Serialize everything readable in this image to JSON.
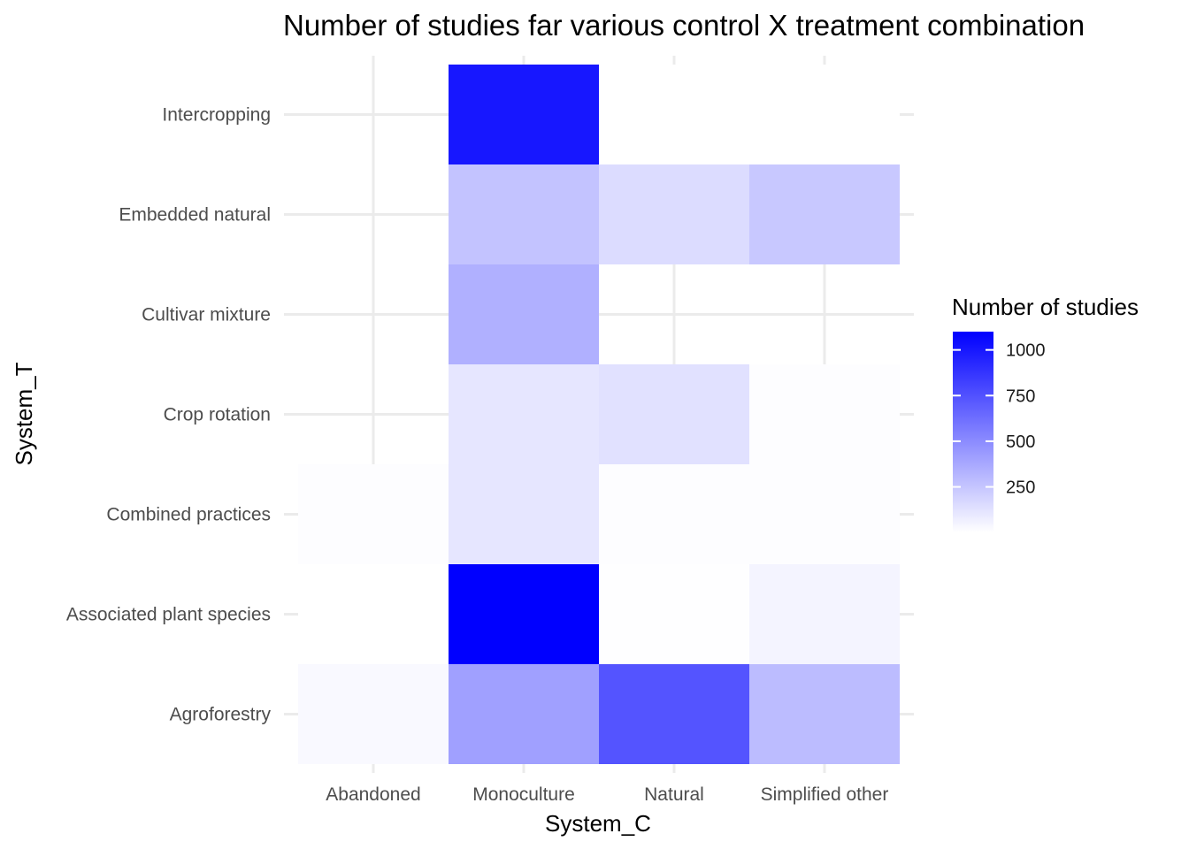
{
  "chart_data": {
    "type": "heatmap",
    "title": "Number of studies far various control X treatment combination",
    "xlabel": "System_C",
    "ylabel": "System_T",
    "x_categories": [
      "Abandoned",
      "Monoculture",
      "Natural",
      "Simplified other"
    ],
    "y_categories": [
      "Agroforestry",
      "Associated plant species",
      "Combined practices",
      "Crop rotation",
      "Cultivar mixture",
      "Embedded natural",
      "Intercropping"
    ],
    "cells": [
      {
        "x": "Abandoned",
        "y": "Agroforestry",
        "value": 25
      },
      {
        "x": "Monoculture",
        "y": "Agroforestry",
        "value": 410
      },
      {
        "x": "Natural",
        "y": "Agroforestry",
        "value": 740
      },
      {
        "x": "Simplified other",
        "y": "Agroforestry",
        "value": 290
      },
      {
        "x": "Abandoned",
        "y": "Associated plant species",
        "value": 2
      },
      {
        "x": "Monoculture",
        "y": "Associated plant species",
        "value": 1100
      },
      {
        "x": "Natural",
        "y": "Associated plant species",
        "value": 6
      },
      {
        "x": "Simplified other",
        "y": "Associated plant species",
        "value": 50
      },
      {
        "x": "Abandoned",
        "y": "Combined practices",
        "value": 8
      },
      {
        "x": "Monoculture",
        "y": "Combined practices",
        "value": 110
      },
      {
        "x": "Natural",
        "y": "Combined practices",
        "value": 8
      },
      {
        "x": "Simplified other",
        "y": "Combined practices",
        "value": 8
      },
      {
        "x": "Monoculture",
        "y": "Crop rotation",
        "value": 110
      },
      {
        "x": "Natural",
        "y": "Crop rotation",
        "value": 130
      },
      {
        "x": "Simplified other",
        "y": "Crop rotation",
        "value": 8
      },
      {
        "x": "Monoculture",
        "y": "Cultivar mixture",
        "value": 340
      },
      {
        "x": "Monoculture",
        "y": "Embedded natural",
        "value": 260
      },
      {
        "x": "Natural",
        "y": "Embedded natural",
        "value": 150
      },
      {
        "x": "Simplified other",
        "y": "Embedded natural",
        "value": 240
      },
      {
        "x": "Monoculture",
        "y": "Intercropping",
        "value": 1000
      },
      {
        "x": "Natural",
        "y": "Intercropping",
        "value": 2
      },
      {
        "x": "Simplified other",
        "y": "Intercropping",
        "value": 2
      }
    ],
    "legend": {
      "title": "Number of studies",
      "position": "right",
      "breaks": [
        1000,
        750,
        500,
        250
      ],
      "range": [
        1,
        1100
      ],
      "low_color": "#ffffff",
      "high_color": "#0000ff"
    },
    "grid": true
  }
}
